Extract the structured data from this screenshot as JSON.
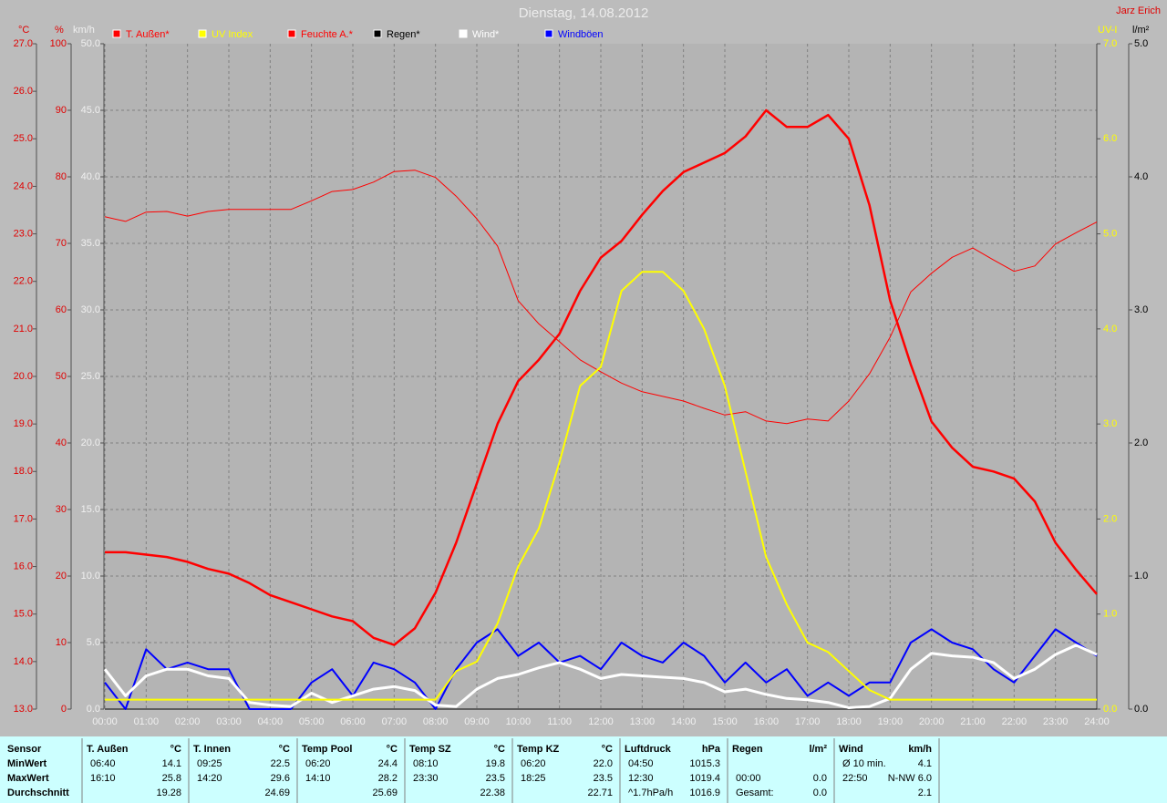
{
  "chart_data": {
    "type": "line",
    "title": "Dienstag, 14.08.2012",
    "author": "Jarz Erich",
    "x": [
      0,
      0.5,
      1,
      1.5,
      2,
      2.5,
      3,
      3.5,
      4,
      4.5,
      5,
      5.5,
      6,
      6.5,
      7,
      7.5,
      8,
      8.5,
      9,
      9.5,
      10,
      10.5,
      11,
      11.5,
      12,
      12.5,
      13,
      13.5,
      14,
      14.5,
      15,
      15.5,
      16,
      16.5,
      17,
      17.5,
      18,
      18.5,
      19,
      19.5,
      20,
      20.5,
      21,
      21.5,
      22,
      22.5,
      23,
      23.5,
      24
    ],
    "xlim": [
      0,
      24
    ],
    "xticks": [
      {
        "value": 0,
        "label": "00:00"
      },
      {
        "value": 1,
        "label": "01:00"
      },
      {
        "value": 2,
        "label": "02:00"
      },
      {
        "value": 3,
        "label": "03:00"
      },
      {
        "value": 4,
        "label": "04:00"
      },
      {
        "value": 5,
        "label": "05:00"
      },
      {
        "value": 6,
        "label": "06:00"
      },
      {
        "value": 7,
        "label": "07:00"
      },
      {
        "value": 8,
        "label": "08:00"
      },
      {
        "value": 9,
        "label": "09:00"
      },
      {
        "value": 10,
        "label": "10:00"
      },
      {
        "value": 11,
        "label": "11:00"
      },
      {
        "value": 12,
        "label": "12:00"
      },
      {
        "value": 13,
        "label": "13:00"
      },
      {
        "value": 14,
        "label": "14:00"
      },
      {
        "value": 15,
        "label": "15:00"
      },
      {
        "value": 16,
        "label": "16:00"
      },
      {
        "value": 17,
        "label": "17:00"
      },
      {
        "value": 18,
        "label": "18:00"
      },
      {
        "value": 19,
        "label": "19:00"
      },
      {
        "value": 20,
        "label": "20:00"
      },
      {
        "value": 21,
        "label": "21:00"
      },
      {
        "value": 22,
        "label": "22:00"
      },
      {
        "value": 23,
        "label": "23:00"
      },
      {
        "value": 24,
        "label": "24:00"
      }
    ],
    "grid": true,
    "axes": [
      {
        "name": "°C",
        "color": "#e00000",
        "lim": [
          13,
          27
        ],
        "ticks": [
          {
            "value": 13,
            "label": "13.0"
          },
          {
            "value": 14,
            "label": "14.0"
          },
          {
            "value": 15,
            "label": "15.0"
          },
          {
            "value": 16,
            "label": "16.0"
          },
          {
            "value": 17,
            "label": "17.0"
          },
          {
            "value": 18,
            "label": "18.0"
          },
          {
            "value": 19,
            "label": "19.0"
          },
          {
            "value": 20,
            "label": "20.0"
          },
          {
            "value": 21,
            "label": "21.0"
          },
          {
            "value": 22,
            "label": "22.0"
          },
          {
            "value": 23,
            "label": "23.0"
          },
          {
            "value": 24,
            "label": "24.0"
          },
          {
            "value": 25,
            "label": "25.0"
          },
          {
            "value": 26,
            "label": "26.0"
          },
          {
            "value": 27,
            "label": "27.0"
          }
        ]
      },
      {
        "name": "%",
        "color": "#e00000",
        "lim": [
          0,
          100
        ],
        "ticks": [
          0,
          10,
          20,
          30,
          40,
          50,
          60,
          70,
          80,
          90,
          100
        ]
      },
      {
        "name": "km/h",
        "color": "#f0f0f0",
        "lim": [
          0,
          50
        ],
        "ticks": [
          {
            "value": 0,
            "label": "0.0"
          },
          {
            "value": 5,
            "label": "5.0"
          },
          {
            "value": 10,
            "label": "10.0"
          },
          {
            "value": 15,
            "label": "15.0"
          },
          {
            "value": 20,
            "label": "20.0"
          },
          {
            "value": 25,
            "label": "25.0"
          },
          {
            "value": 30,
            "label": "30.0"
          },
          {
            "value": 35,
            "label": "35.0"
          },
          {
            "value": 40,
            "label": "40.0"
          },
          {
            "value": 45,
            "label": "45.0"
          },
          {
            "value": 50,
            "label": "50.0"
          }
        ]
      },
      {
        "name": "UV-I",
        "color": "#ffff00",
        "lim": [
          0,
          7
        ],
        "ticks": [
          {
            "value": 0,
            "label": "0.0"
          },
          {
            "value": 1,
            "label": "1.0"
          },
          {
            "value": 2,
            "label": "2.0"
          },
          {
            "value": 3,
            "label": "3.0"
          },
          {
            "value": 4,
            "label": "4.0"
          },
          {
            "value": 5,
            "label": "5.0"
          },
          {
            "value": 6,
            "label": "6.0"
          },
          {
            "value": 7,
            "label": "7.0"
          }
        ]
      },
      {
        "name": "l/m²",
        "color": "#000000",
        "lim": [
          0,
          5
        ],
        "ticks": [
          {
            "value": 0,
            "label": "0.0"
          },
          {
            "value": 1,
            "label": "1.0"
          },
          {
            "value": 2,
            "label": "2.0"
          },
          {
            "value": 3,
            "label": "3.0"
          },
          {
            "value": 4,
            "label": "4.0"
          },
          {
            "value": 5,
            "label": "5.0"
          }
        ]
      }
    ],
    "series": [
      {
        "name": "T. Außen*",
        "color": "#ff0000",
        "axis": 0,
        "width": 2.5,
        "values": [
          16.3,
          16.3,
          16.25,
          16.2,
          16.1,
          15.95,
          15.85,
          15.65,
          15.4,
          15.25,
          15.1,
          14.95,
          14.85,
          14.5,
          14.35,
          14.7,
          15.45,
          16.5,
          17.75,
          19.0,
          19.9,
          20.35,
          20.9,
          21.8,
          22.5,
          22.85,
          23.4,
          23.9,
          24.3,
          24.5,
          24.7,
          25.05,
          25.6,
          25.25,
          25.25,
          25.5,
          25.0,
          23.6,
          21.6,
          20.25,
          19.05,
          18.5,
          18.1,
          18.0,
          17.85,
          17.37,
          16.5,
          15.93,
          15.42
        ]
      },
      {
        "name": "UV Index",
        "color": "#ffff00",
        "axis": 3,
        "width": 2,
        "values": [
          0.1,
          0.1,
          0.1,
          0.1,
          0.1,
          0.1,
          0.1,
          0.1,
          0.1,
          0.1,
          0.1,
          0.1,
          0.1,
          0.1,
          0.1,
          0.1,
          0.1,
          0.4,
          0.5,
          0.9,
          1.5,
          1.9,
          2.6,
          3.4,
          3.6,
          4.4,
          4.6,
          4.6,
          4.4,
          4.0,
          3.4,
          2.5,
          1.6,
          1.1,
          0.7,
          0.6,
          0.4,
          0.2,
          0.1,
          0.1,
          0.1,
          0.1,
          0.1,
          0.1,
          0.1,
          0.1,
          0.1,
          0.1,
          0.1
        ]
      },
      {
        "name": "Feuchte A.*",
        "color": "#ff0000",
        "axis": 1,
        "width": 1,
        "values": [
          74,
          73.3,
          74.7,
          74.8,
          74.1,
          74.8,
          75.1,
          75.1,
          75.1,
          75.1,
          76.4,
          77.8,
          78.1,
          79.2,
          80.8,
          81,
          79.9,
          77.1,
          73.7,
          69.6,
          61.4,
          57.9,
          55.2,
          52.5,
          50.7,
          49,
          47.7,
          47,
          46.3,
          45.2,
          44.2,
          44.7,
          43.3,
          42.9,
          43.6,
          43.3,
          46.3,
          50.4,
          55.9,
          62.7,
          65.5,
          67.9,
          69.3,
          67.5,
          65.8,
          66.6,
          69.9,
          71.6,
          73.2
        ]
      },
      {
        "name": "Regen*",
        "color": "#000000",
        "axis": 4,
        "width": 1,
        "x": [
          0,
          24
        ],
        "values": [
          0,
          0
        ]
      },
      {
        "name": "Wind*",
        "color": "#ffffff",
        "axis": 2,
        "width": 3,
        "values": [
          3,
          1,
          2.5,
          3,
          3,
          2.5,
          2.3,
          0.5,
          0.3,
          0.2,
          1.2,
          0.5,
          1.0,
          1.5,
          1.7,
          1.4,
          0.3,
          0.2,
          1.5,
          2.3,
          2.6,
          3.1,
          3.5,
          3.0,
          2.3,
          2.6,
          2.5,
          2.4,
          2.3,
          2.0,
          1.3,
          1.5,
          1.1,
          0.8,
          0.7,
          0.5,
          0.1,
          0.2,
          0.8,
          3.0,
          4.2,
          4.0,
          3.9,
          3.5,
          2.3,
          3.0,
          4.1,
          4.8,
          4.1
        ]
      },
      {
        "name": "Windböen",
        "color": "#0000ff",
        "axis": 2,
        "width": 2,
        "values": [
          2,
          0,
          4.5,
          3,
          3.5,
          3,
          3,
          0,
          0,
          0,
          2,
          3,
          1,
          3.5,
          3,
          2,
          0,
          3,
          5,
          6,
          4,
          5,
          3.5,
          4,
          3,
          5,
          4,
          3.5,
          5,
          4,
          2,
          3.5,
          2,
          3,
          1,
          2,
          1,
          2,
          2,
          5,
          6,
          5,
          4.5,
          3,
          2,
          4,
          6,
          5,
          4
        ]
      }
    ]
  },
  "table": {
    "sensor": {
      "title": "Sensor",
      "rows": [
        "MinWert",
        "MaxWert",
        "Durchschnitt"
      ]
    },
    "columns": [
      {
        "title": "T. Außen",
        "unit": "°C",
        "min": {
          "time": "06:40",
          "value": "14.1"
        },
        "max": {
          "time": "16:10",
          "value": "25.8"
        },
        "avg": {
          "value": "19.28"
        }
      },
      {
        "title": "T. Innen",
        "unit": "°C",
        "min": {
          "time": "09:25",
          "value": "22.5"
        },
        "max": {
          "time": "14:20",
          "value": "29.6"
        },
        "avg": {
          "value": "24.69"
        }
      },
      {
        "title": "Temp Pool",
        "unit": "°C",
        "min": {
          "time": "06:20",
          "value": "24.4"
        },
        "max": {
          "time": "14:10",
          "value": "28.2"
        },
        "avg": {
          "value": "25.69"
        }
      },
      {
        "title": "Temp SZ",
        "unit": "°C",
        "min": {
          "time": "08:10",
          "value": "19.8"
        },
        "max": {
          "time": "23:30",
          "value": "23.5"
        },
        "avg": {
          "value": "22.38"
        }
      },
      {
        "title": "Temp KZ",
        "unit": "°C",
        "min": {
          "time": "06:20",
          "value": "22.0"
        },
        "max": {
          "time": "18:25",
          "value": "23.5"
        },
        "avg": {
          "value": "22.71"
        }
      },
      {
        "title": "Luftdruck",
        "unit": "hPa",
        "min": {
          "time": "04:50",
          "value": "1015.3"
        },
        "max": {
          "time": "12:30",
          "value": "1019.4"
        },
        "avg": {
          "time": "^1.7hPa/h",
          "value": "1016.9"
        }
      },
      {
        "title": "Regen",
        "unit": "l/m²",
        "max": {
          "time": "00:00",
          "value": "0.0"
        },
        "avg": {
          "time": "Gesamt:",
          "value": "0.0"
        }
      },
      {
        "title": "Wind",
        "unit": "km/h",
        "min": {
          "time": "Ø 10 min.",
          "value": "4.1"
        },
        "max": {
          "time": "22:50",
          "value": "N-NW 6.0"
        },
        "avg": {
          "value": "2.1"
        }
      }
    ]
  }
}
